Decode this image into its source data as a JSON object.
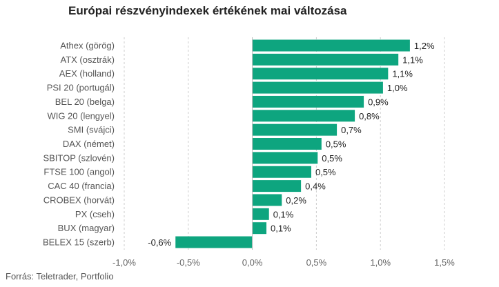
{
  "chart_data": {
    "type": "bar",
    "orientation": "horizontal",
    "title": "Európai részvényindexek értékének mai változása",
    "categories": [
      "Athex (görög)",
      "ATX (osztrák)",
      "AEX (holland)",
      "PSI 20 (portugál)",
      "BEL 20 (belga)",
      "WIG 20 (lengyel)",
      "SMI (svájci)",
      "DAX (német)",
      "SBITOP (szlovén)",
      "FTSE 100 (angol)",
      "CAC 40 (francia)",
      "CROBEX (horvát)",
      "PX (cseh)",
      "BUX (magyar)",
      "BELEX 15 (szerb)"
    ],
    "values": [
      1.23,
      1.14,
      1.06,
      1.02,
      0.87,
      0.8,
      0.66,
      0.54,
      0.51,
      0.46,
      0.38,
      0.23,
      0.13,
      0.11,
      -0.6
    ],
    "value_labels": [
      "1,2%",
      "1,1%",
      "1,1%",
      "1,0%",
      "0,9%",
      "0,8%",
      "0,7%",
      "0,5%",
      "0,5%",
      "0,5%",
      "0,4%",
      "0,2%",
      "0,1%",
      "0,1%",
      "-0,6%"
    ],
    "xlim": [
      -1.0,
      1.5
    ],
    "x_ticks": [
      -1.0,
      -0.5,
      0.0,
      0.5,
      1.0,
      1.5
    ],
    "x_tick_labels": [
      "-1,0%",
      "-0,5%",
      "0,0%",
      "0,5%",
      "1,0%",
      "1,5%"
    ],
    "grid": "vertical dashed",
    "bar_color": "#0ea57f",
    "grid_color": "#cccccc",
    "source": "Forrás: Teletrader, Portfolio"
  }
}
